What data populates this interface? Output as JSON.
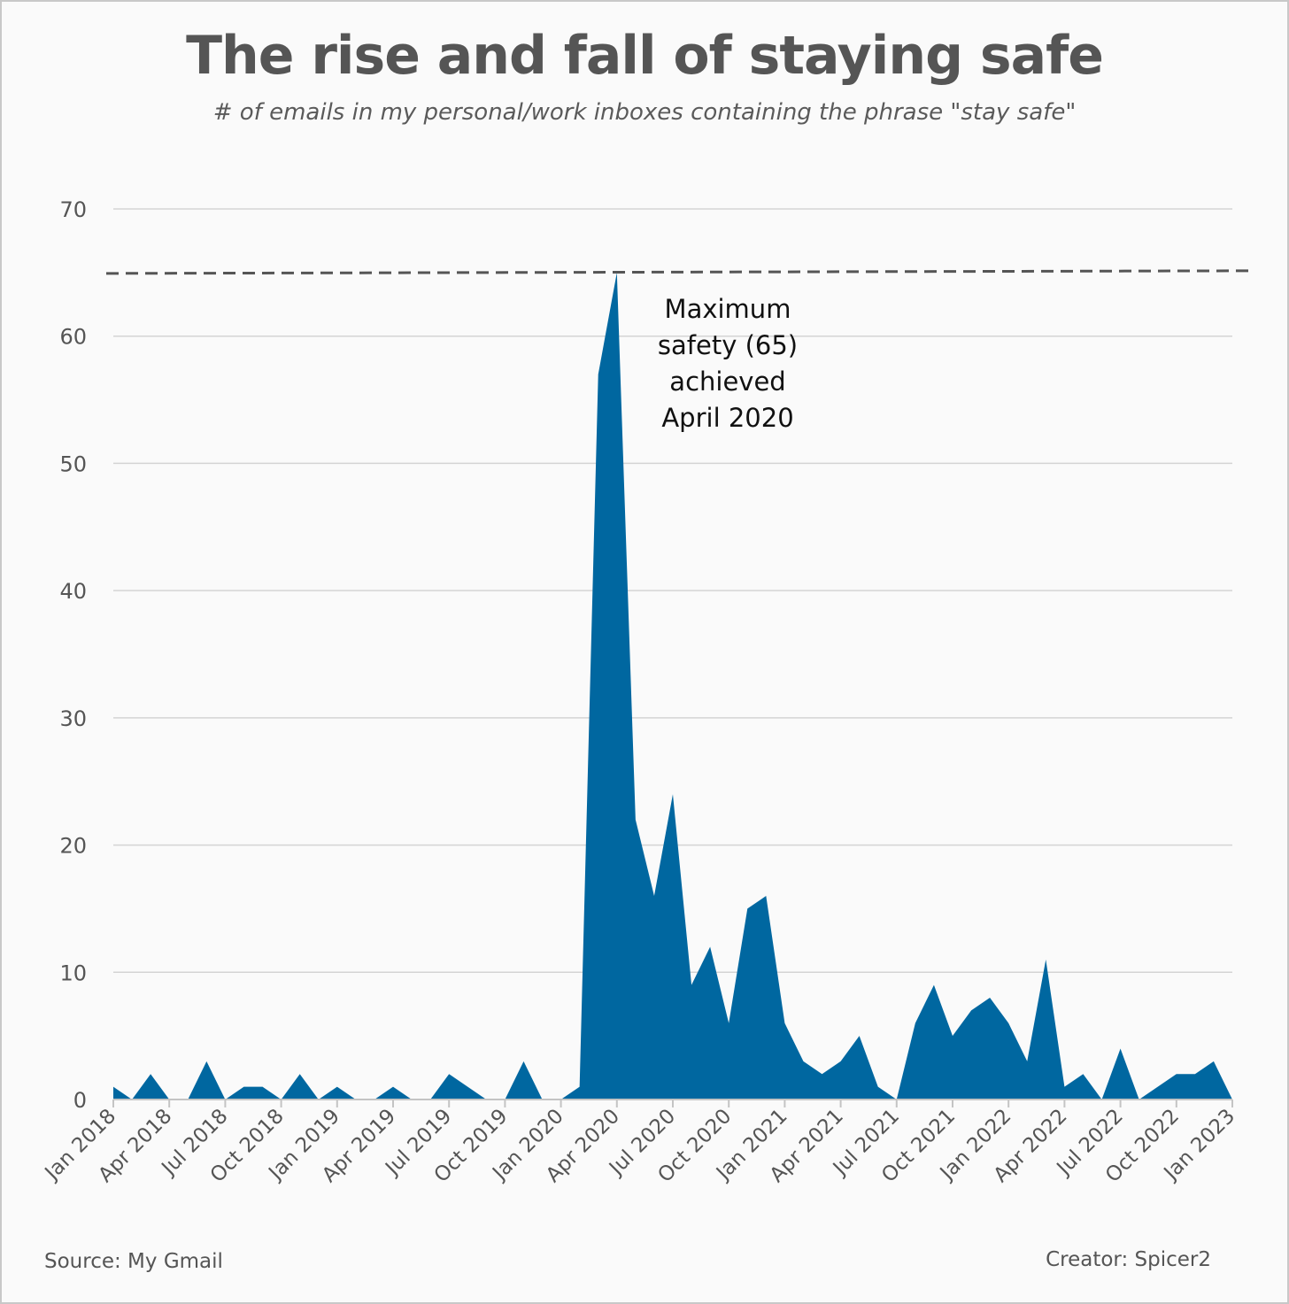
{
  "header": {
    "title": "The rise and fall of staying safe",
    "subtitle": "# of emails in my personal/work inboxes containing the phrase \"stay safe\""
  },
  "footer": {
    "source": "Source: My Gmail",
    "creator": "Creator: Spicer2"
  },
  "colors": {
    "area": "#0067a0",
    "grid": "#d4d4d4",
    "text": "#555555",
    "reference_line": "#555555",
    "background": "#fafafa"
  },
  "chart_data": {
    "type": "area",
    "title": "The rise and fall of staying safe",
    "subtitle": "# of emails in my personal/work inboxes containing the phrase \"stay safe\"",
    "xlabel": "",
    "ylabel": "",
    "ylim": [
      0,
      70
    ],
    "yticks": [
      0,
      10,
      20,
      30,
      40,
      50,
      60,
      70
    ],
    "xticks": [
      "Jan 2018",
      "Apr 2018",
      "Jul 2018",
      "Oct 2018",
      "Jan 2019",
      "Apr 2019",
      "Jul 2019",
      "Oct 2019",
      "Jan 2020",
      "Apr 2020",
      "Jul 2020",
      "Oct 2020",
      "Jan 2021",
      "Apr 2021",
      "Jul 2021",
      "Oct 2021",
      "Jan 2022",
      "Apr 2022",
      "Jul 2022",
      "Oct 2022",
      "Jan 2023"
    ],
    "grid": "horizontal",
    "x": [
      "2018-01",
      "2018-02",
      "2018-03",
      "2018-04",
      "2018-05",
      "2018-06",
      "2018-07",
      "2018-08",
      "2018-09",
      "2018-10",
      "2018-11",
      "2018-12",
      "2019-01",
      "2019-02",
      "2019-03",
      "2019-04",
      "2019-05",
      "2019-06",
      "2019-07",
      "2019-08",
      "2019-09",
      "2019-10",
      "2019-11",
      "2019-12",
      "2020-01",
      "2020-02",
      "2020-03",
      "2020-04",
      "2020-05",
      "2020-06",
      "2020-07",
      "2020-08",
      "2020-09",
      "2020-10",
      "2020-11",
      "2020-12",
      "2021-01",
      "2021-02",
      "2021-03",
      "2021-04",
      "2021-05",
      "2021-06",
      "2021-07",
      "2021-08",
      "2021-09",
      "2021-10",
      "2021-11",
      "2021-12",
      "2022-01",
      "2022-02",
      "2022-03",
      "2022-04",
      "2022-05",
      "2022-06",
      "2022-07",
      "2022-08",
      "2022-09",
      "2022-10",
      "2022-11",
      "2022-12",
      "2023-01"
    ],
    "values": [
      1,
      0,
      2,
      0,
      0,
      3,
      0,
      1,
      1,
      0,
      2,
      0,
      1,
      0,
      0,
      1,
      0,
      0,
      2,
      1,
      0,
      0,
      3,
      0,
      0,
      1,
      57,
      65,
      22,
      16,
      24,
      9,
      12,
      6,
      15,
      16,
      6,
      3,
      2,
      3,
      5,
      1,
      0,
      6,
      9,
      5,
      7,
      8,
      6,
      3,
      11,
      1,
      2,
      0,
      4,
      0,
      1,
      2,
      2,
      3,
      0
    ],
    "reference_line": {
      "value": 65,
      "style": "dashed"
    },
    "annotation": [
      "Maximum",
      "safety (65)",
      "achieved",
      "April 2020"
    ]
  }
}
